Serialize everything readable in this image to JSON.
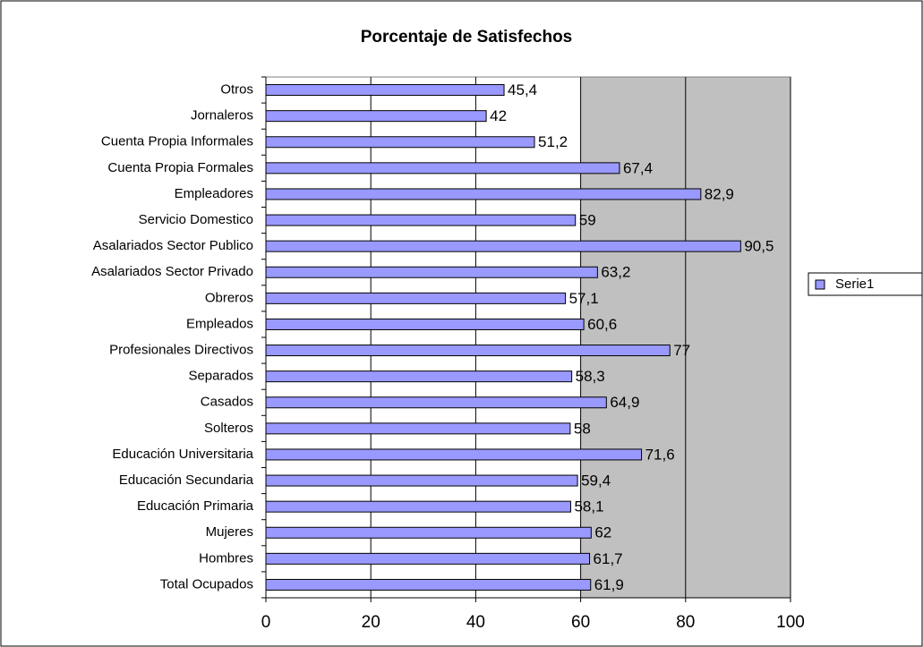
{
  "chart_data": {
    "type": "bar",
    "orientation": "horizontal",
    "title": "Porcentaje de Satisfechos",
    "categories": [
      "Otros",
      "Jornaleros",
      "Cuenta Propia Informales",
      "Cuenta Propia Formales",
      "Empleadores",
      "Servicio Domestico",
      "Asalariados Sector Publico",
      "Asalariados Sector Privado",
      "Obreros",
      "Empleados",
      "Profesionales Directivos",
      "Separados",
      "Casados",
      "Solteros",
      "Educación Universitaria",
      "Educación Secundaria",
      "Educación Primaria",
      "Mujeres",
      "Hombres",
      "Total Ocupados"
    ],
    "series": [
      {
        "name": "Serie1",
        "color": "#9999ff",
        "values": [
          45.4,
          42,
          51.2,
          67.4,
          82.9,
          59,
          90.5,
          63.2,
          57.1,
          60.6,
          77,
          58.3,
          64.9,
          58,
          71.6,
          59.4,
          58.1,
          62,
          61.7,
          61.9
        ],
        "value_labels": [
          "45,4",
          "42",
          "51,2",
          "67,4",
          "82,9",
          "59",
          "90,5",
          "63,2",
          "57,1",
          "60,6",
          "77",
          "58,3",
          "64,9",
          "58",
          "71,6",
          "59,4",
          "58,1",
          "62",
          "61,7",
          "61,9"
        ]
      }
    ],
    "xlim": [
      0,
      100
    ],
    "xticks": [
      0,
      20,
      40,
      60,
      80,
      100
    ],
    "grid": true,
    "legend": "right"
  }
}
